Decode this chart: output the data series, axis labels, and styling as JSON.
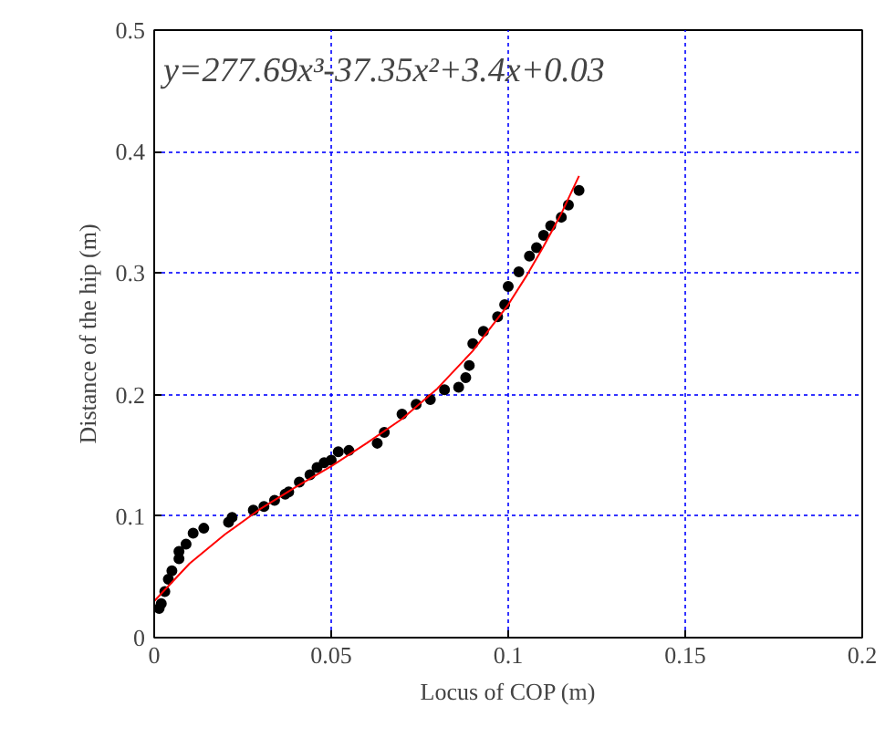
{
  "chart_data": {
    "type": "scatter",
    "xlabel": "Locus of COP (m)",
    "ylabel": "Distance of the hip (m)",
    "xlim": [
      0,
      0.2
    ],
    "ylim": [
      0,
      0.5
    ],
    "xticks": [
      0,
      0.05,
      0.1,
      0.15,
      0.2
    ],
    "yticks": [
      0,
      0.1,
      0.2,
      0.3,
      0.4,
      0.5
    ],
    "grid": true,
    "annotations": [
      "y=277.69x³-37.35x²+3.4x+0.03"
    ],
    "series": [
      {
        "marker": "circle",
        "color": "#000000",
        "x": [
          0.0014,
          0.002,
          0.003,
          0.004,
          0.005,
          0.007,
          0.007,
          0.009,
          0.011,
          0.014,
          0.021,
          0.022,
          0.028,
          0.031,
          0.034,
          0.037,
          0.038,
          0.041,
          0.044,
          0.046,
          0.048,
          0.05,
          0.052,
          0.055,
          0.063,
          0.065,
          0.07,
          0.074,
          0.078,
          0.082,
          0.086,
          0.088,
          0.089,
          0.09,
          0.093,
          0.097,
          0.099,
          0.1,
          0.103,
          0.106,
          0.108,
          0.11,
          0.112,
          0.115,
          0.117,
          0.12
        ],
        "values": [
          0.024,
          0.028,
          0.038,
          0.048,
          0.055,
          0.065,
          0.071,
          0.077,
          0.086,
          0.09,
          0.095,
          0.099,
          0.105,
          0.108,
          0.113,
          0.118,
          0.12,
          0.128,
          0.134,
          0.14,
          0.144,
          0.146,
          0.153,
          0.154,
          0.16,
          0.169,
          0.184,
          0.192,
          0.196,
          0.204,
          0.206,
          0.214,
          0.224,
          0.242,
          0.252,
          0.264,
          0.274,
          0.289,
          0.301,
          0.314,
          0.321,
          0.331,
          0.339,
          0.346,
          0.356,
          0.368
        ]
      },
      {
        "type": "line",
        "line_style": "solid",
        "color": "#ff0000",
        "x": [
          0,
          0.01,
          0.02,
          0.03,
          0.04,
          0.05,
          0.06,
          0.07,
          0.08,
          0.09,
          0.1,
          0.105,
          0.11,
          0.115,
          0.12
        ],
        "values": [
          0.03,
          0.061,
          0.085,
          0.106,
          0.124,
          0.141,
          0.16,
          0.18,
          0.205,
          0.236,
          0.274,
          0.297,
          0.322,
          0.349,
          0.38
        ]
      }
    ]
  }
}
